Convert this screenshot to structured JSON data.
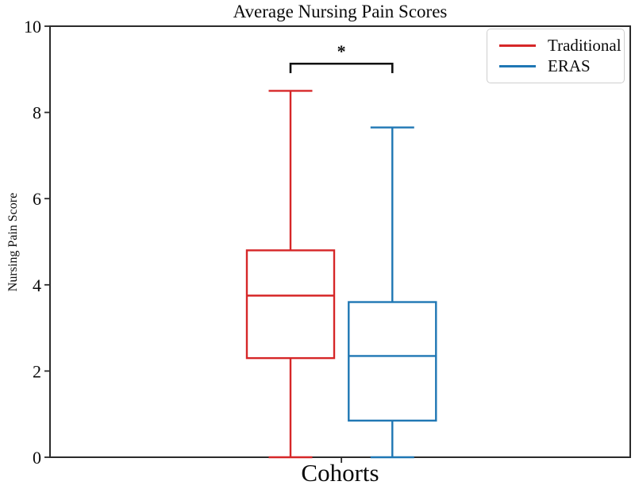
{
  "chart_data": {
    "type": "boxplot",
    "title": "Average Nursing Pain Scores",
    "xlabel": "Cohorts",
    "ylabel": "Nursing Pain Score",
    "ylim": [
      0,
      10
    ],
    "yticks": [
      0,
      2,
      4,
      6,
      8,
      10
    ],
    "grid": false,
    "legend_position": "upper right",
    "legend": [
      {
        "label": "Traditional",
        "color": "#d62728"
      },
      {
        "label": "ERAS",
        "color": "#1f77b4"
      }
    ],
    "series": [
      {
        "name": "Traditional",
        "color": "#d62728",
        "position_frac": 0.4145,
        "whisker_low": 0,
        "q1": 2.3,
        "median": 3.75,
        "q3": 4.8,
        "whisker_high": 8.5
      },
      {
        "name": "ERAS",
        "color": "#1f77b4",
        "position_frac": 0.59,
        "whisker_low": 0,
        "q1": 0.85,
        "median": 2.35,
        "q3": 3.6,
        "whisker_high": 7.65
      }
    ],
    "significance": {
      "symbol": "*",
      "between": [
        "Traditional",
        "ERAS"
      ],
      "bar_y": 9.13,
      "tick_drop": 0.22
    },
    "colors": {
      "axis": "#2b2b2b",
      "annotation": "#111111",
      "legend_border": "#cfcfcf"
    }
  }
}
